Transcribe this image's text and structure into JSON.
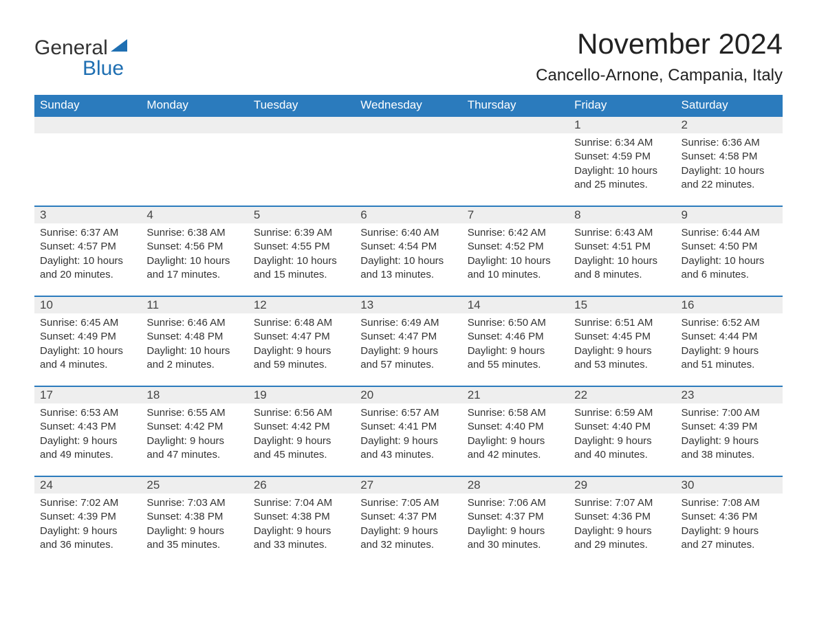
{
  "logo": {
    "general": "General",
    "blue": "Blue"
  },
  "title": "November 2024",
  "location": "Cancello-Arnone, Campania, Italy",
  "colors": {
    "header_bg": "#2b7bbd",
    "header_text": "#ffffff",
    "day_number_bg": "#eeeeee",
    "rule": "#2b7bbd",
    "logo_accent": "#1f6fb2",
    "body_text": "#333333",
    "background": "#ffffff"
  },
  "typography": {
    "title_fontsize": 42,
    "location_fontsize": 24,
    "day_header_fontsize": 17,
    "day_number_fontsize": 17,
    "cell_text_fontsize": 15,
    "logo_fontsize": 30
  },
  "layout": {
    "columns": 7,
    "rows": 5,
    "leading_empty_cells": 5
  },
  "day_names": [
    "Sunday",
    "Monday",
    "Tuesday",
    "Wednesday",
    "Thursday",
    "Friday",
    "Saturday"
  ],
  "days": [
    {
      "n": "1",
      "sunrise": "Sunrise: 6:34 AM",
      "sunset": "Sunset: 4:59 PM",
      "daylight": "Daylight: 10 hours and 25 minutes."
    },
    {
      "n": "2",
      "sunrise": "Sunrise: 6:36 AM",
      "sunset": "Sunset: 4:58 PM",
      "daylight": "Daylight: 10 hours and 22 minutes."
    },
    {
      "n": "3",
      "sunrise": "Sunrise: 6:37 AM",
      "sunset": "Sunset: 4:57 PM",
      "daylight": "Daylight: 10 hours and 20 minutes."
    },
    {
      "n": "4",
      "sunrise": "Sunrise: 6:38 AM",
      "sunset": "Sunset: 4:56 PM",
      "daylight": "Daylight: 10 hours and 17 minutes."
    },
    {
      "n": "5",
      "sunrise": "Sunrise: 6:39 AM",
      "sunset": "Sunset: 4:55 PM",
      "daylight": "Daylight: 10 hours and 15 minutes."
    },
    {
      "n": "6",
      "sunrise": "Sunrise: 6:40 AM",
      "sunset": "Sunset: 4:54 PM",
      "daylight": "Daylight: 10 hours and 13 minutes."
    },
    {
      "n": "7",
      "sunrise": "Sunrise: 6:42 AM",
      "sunset": "Sunset: 4:52 PM",
      "daylight": "Daylight: 10 hours and 10 minutes."
    },
    {
      "n": "8",
      "sunrise": "Sunrise: 6:43 AM",
      "sunset": "Sunset: 4:51 PM",
      "daylight": "Daylight: 10 hours and 8 minutes."
    },
    {
      "n": "9",
      "sunrise": "Sunrise: 6:44 AM",
      "sunset": "Sunset: 4:50 PM",
      "daylight": "Daylight: 10 hours and 6 minutes."
    },
    {
      "n": "10",
      "sunrise": "Sunrise: 6:45 AM",
      "sunset": "Sunset: 4:49 PM",
      "daylight": "Daylight: 10 hours and 4 minutes."
    },
    {
      "n": "11",
      "sunrise": "Sunrise: 6:46 AM",
      "sunset": "Sunset: 4:48 PM",
      "daylight": "Daylight: 10 hours and 2 minutes."
    },
    {
      "n": "12",
      "sunrise": "Sunrise: 6:48 AM",
      "sunset": "Sunset: 4:47 PM",
      "daylight": "Daylight: 9 hours and 59 minutes."
    },
    {
      "n": "13",
      "sunrise": "Sunrise: 6:49 AM",
      "sunset": "Sunset: 4:47 PM",
      "daylight": "Daylight: 9 hours and 57 minutes."
    },
    {
      "n": "14",
      "sunrise": "Sunrise: 6:50 AM",
      "sunset": "Sunset: 4:46 PM",
      "daylight": "Daylight: 9 hours and 55 minutes."
    },
    {
      "n": "15",
      "sunrise": "Sunrise: 6:51 AM",
      "sunset": "Sunset: 4:45 PM",
      "daylight": "Daylight: 9 hours and 53 minutes."
    },
    {
      "n": "16",
      "sunrise": "Sunrise: 6:52 AM",
      "sunset": "Sunset: 4:44 PM",
      "daylight": "Daylight: 9 hours and 51 minutes."
    },
    {
      "n": "17",
      "sunrise": "Sunrise: 6:53 AM",
      "sunset": "Sunset: 4:43 PM",
      "daylight": "Daylight: 9 hours and 49 minutes."
    },
    {
      "n": "18",
      "sunrise": "Sunrise: 6:55 AM",
      "sunset": "Sunset: 4:42 PM",
      "daylight": "Daylight: 9 hours and 47 minutes."
    },
    {
      "n": "19",
      "sunrise": "Sunrise: 6:56 AM",
      "sunset": "Sunset: 4:42 PM",
      "daylight": "Daylight: 9 hours and 45 minutes."
    },
    {
      "n": "20",
      "sunrise": "Sunrise: 6:57 AM",
      "sunset": "Sunset: 4:41 PM",
      "daylight": "Daylight: 9 hours and 43 minutes."
    },
    {
      "n": "21",
      "sunrise": "Sunrise: 6:58 AM",
      "sunset": "Sunset: 4:40 PM",
      "daylight": "Daylight: 9 hours and 42 minutes."
    },
    {
      "n": "22",
      "sunrise": "Sunrise: 6:59 AM",
      "sunset": "Sunset: 4:40 PM",
      "daylight": "Daylight: 9 hours and 40 minutes."
    },
    {
      "n": "23",
      "sunrise": "Sunrise: 7:00 AM",
      "sunset": "Sunset: 4:39 PM",
      "daylight": "Daylight: 9 hours and 38 minutes."
    },
    {
      "n": "24",
      "sunrise": "Sunrise: 7:02 AM",
      "sunset": "Sunset: 4:39 PM",
      "daylight": "Daylight: 9 hours and 36 minutes."
    },
    {
      "n": "25",
      "sunrise": "Sunrise: 7:03 AM",
      "sunset": "Sunset: 4:38 PM",
      "daylight": "Daylight: 9 hours and 35 minutes."
    },
    {
      "n": "26",
      "sunrise": "Sunrise: 7:04 AM",
      "sunset": "Sunset: 4:38 PM",
      "daylight": "Daylight: 9 hours and 33 minutes."
    },
    {
      "n": "27",
      "sunrise": "Sunrise: 7:05 AM",
      "sunset": "Sunset: 4:37 PM",
      "daylight": "Daylight: 9 hours and 32 minutes."
    },
    {
      "n": "28",
      "sunrise": "Sunrise: 7:06 AM",
      "sunset": "Sunset: 4:37 PM",
      "daylight": "Daylight: 9 hours and 30 minutes."
    },
    {
      "n": "29",
      "sunrise": "Sunrise: 7:07 AM",
      "sunset": "Sunset: 4:36 PM",
      "daylight": "Daylight: 9 hours and 29 minutes."
    },
    {
      "n": "30",
      "sunrise": "Sunrise: 7:08 AM",
      "sunset": "Sunset: 4:36 PM",
      "daylight": "Daylight: 9 hours and 27 minutes."
    }
  ]
}
